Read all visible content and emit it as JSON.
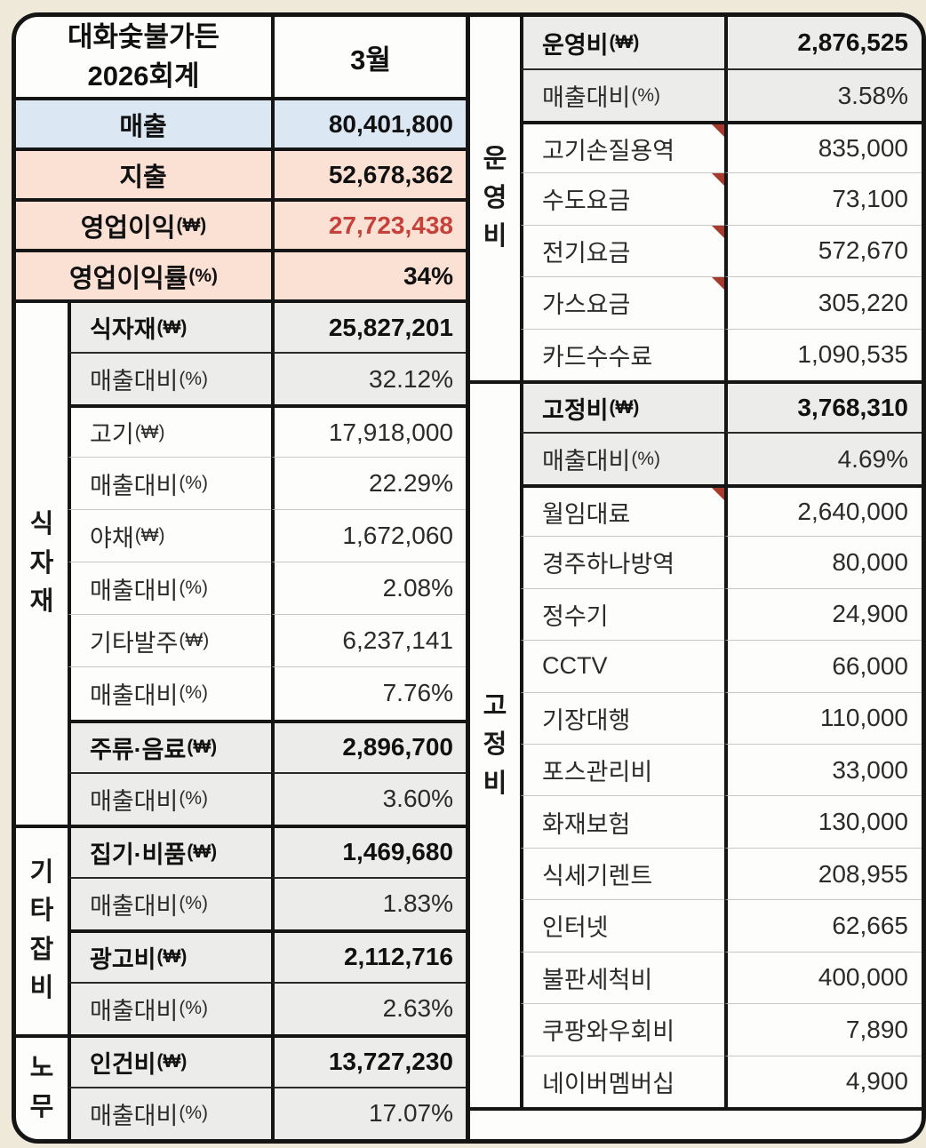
{
  "title": {
    "org": "대화숯불가든",
    "fiscal": "2026회계",
    "month": "3월"
  },
  "colors": {
    "background": "#efe9da",
    "sales_fill": "#dbe8f4",
    "expense_fill": "#fbe0d4",
    "header_fill": "#ececea",
    "profit_red": "#c5423b",
    "comment_indicator_red": "#a53a2d",
    "border_black": "#151515"
  },
  "left_table": {
    "summary": [
      {
        "label": "매출",
        "suffix": "",
        "value": "80,401,800"
      },
      {
        "label": "지출",
        "suffix": "",
        "value": "52,678,362"
      },
      {
        "label": "영업이익",
        "suffix": "(₩)",
        "value": "27,723,438"
      },
      {
        "label": "영업이익률",
        "suffix": "(%)",
        "value": "34%"
      }
    ],
    "sections": [
      {
        "group": "식\n자\n재",
        "rows": [
          {
            "label": "식자재",
            "suffix": "(₩)",
            "value": "25,827,201"
          },
          {
            "label": "매출대비",
            "suffix": "(%)",
            "value": "32.12%"
          },
          {
            "label": "고기",
            "suffix": "(₩)",
            "value": "17,918,000"
          },
          {
            "label": "매출대비",
            "suffix": "(%)",
            "value": "22.29%"
          },
          {
            "label": "야채",
            "suffix": "(₩)",
            "value": "1,672,060"
          },
          {
            "label": "매출대비",
            "suffix": "(%)",
            "value": "2.08%"
          },
          {
            "label": "기타발주",
            "suffix": "(₩)",
            "value": "6,237,141"
          },
          {
            "label": "매출대비",
            "suffix": "(%)",
            "value": "7.76%"
          },
          {
            "label": "주류·음료",
            "suffix": "(₩)",
            "value": "2,896,700"
          },
          {
            "label": "매출대비",
            "suffix": "(%)",
            "value": "3.60%"
          }
        ]
      },
      {
        "group": "기\n타\n잡\n비",
        "rows": [
          {
            "label": "집기·비품",
            "suffix": "(₩)",
            "value": "1,469,680"
          },
          {
            "label": "매출대비",
            "suffix": "(%)",
            "value": "1.83%"
          },
          {
            "label": "광고비",
            "suffix": "(₩)",
            "value": "2,112,716"
          },
          {
            "label": "매출대비",
            "suffix": "(%)",
            "value": "2.63%"
          }
        ]
      },
      {
        "group": "노\n무",
        "rows": [
          {
            "label": "인건비",
            "suffix": "(₩)",
            "value": "13,727,230"
          },
          {
            "label": "매출대비",
            "suffix": "(%)",
            "value": "17.07%"
          }
        ]
      }
    ]
  },
  "right_table": {
    "sections": [
      {
        "group": "운\n영\n비",
        "rows": [
          {
            "label": "운영비",
            "suffix": "(₩)",
            "value": "2,876,525"
          },
          {
            "label": "매출대비",
            "suffix": "(%)",
            "value": "3.58%"
          },
          {
            "label": "고기손질용역",
            "suffix": "",
            "value": "835,000"
          },
          {
            "label": "수도요금",
            "suffix": "",
            "value": "73,100"
          },
          {
            "label": "전기요금",
            "suffix": "",
            "value": "572,670"
          },
          {
            "label": "가스요금",
            "suffix": "",
            "value": "305,220"
          },
          {
            "label": "카드수수료",
            "suffix": "",
            "value": "1,090,535"
          }
        ]
      },
      {
        "group": "고\n정\n비",
        "rows": [
          {
            "label": "고정비",
            "suffix": "(₩)",
            "value": "3,768,310"
          },
          {
            "label": "매출대비",
            "suffix": "(%)",
            "value": "4.69%"
          },
          {
            "label": "월임대료",
            "suffix": "",
            "value": "2,640,000"
          },
          {
            "label": "경주하나방역",
            "suffix": "",
            "value": "80,000"
          },
          {
            "label": "정수기",
            "suffix": "",
            "value": "24,900"
          },
          {
            "label": "CCTV",
            "suffix": "",
            "value": "66,000"
          },
          {
            "label": "기장대행",
            "suffix": "",
            "value": "110,000"
          },
          {
            "label": "포스관리비",
            "suffix": "",
            "value": "33,000"
          },
          {
            "label": "화재보험",
            "suffix": "",
            "value": "130,000"
          },
          {
            "label": "식세기렌트",
            "suffix": "",
            "value": "208,955"
          },
          {
            "label": "인터넷",
            "suffix": "",
            "value": "62,665"
          },
          {
            "label": "불판세척비",
            "suffix": "",
            "value": "400,000"
          },
          {
            "label": "쿠팡와우회비",
            "suffix": "",
            "value": "7,890"
          },
          {
            "label": "네이버멤버십",
            "suffix": "",
            "value": "4,900"
          }
        ]
      }
    ]
  }
}
